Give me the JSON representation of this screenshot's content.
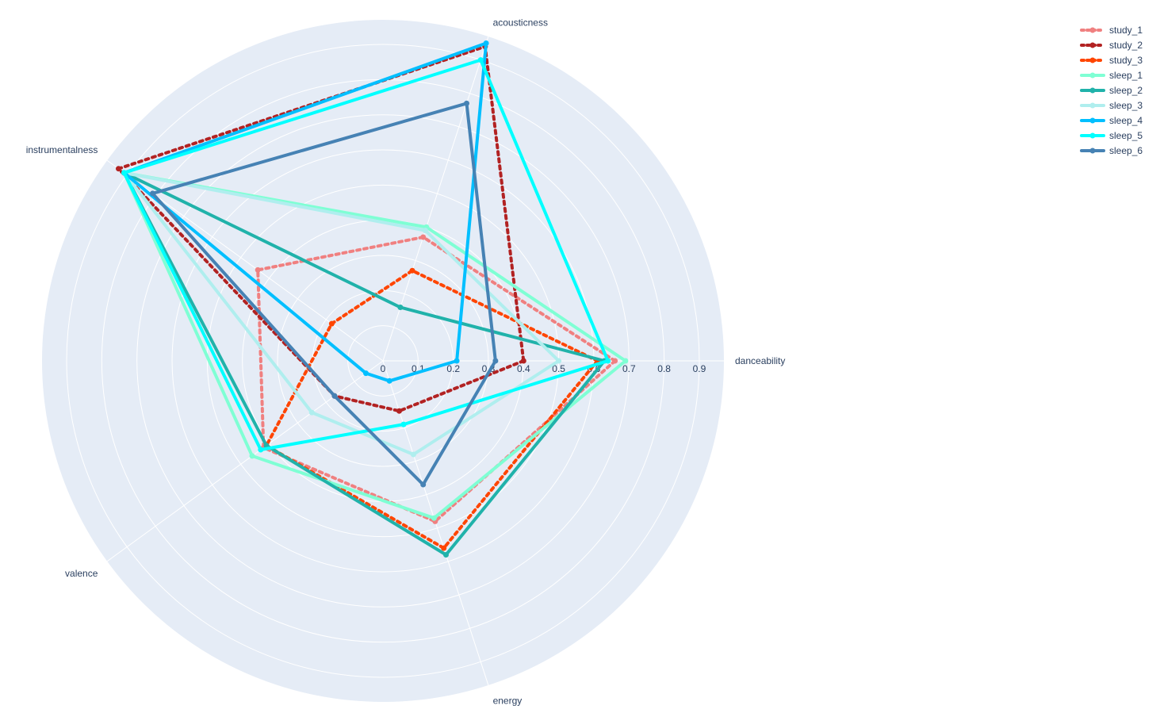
{
  "chart_data": {
    "type": "radar",
    "axes": [
      "danceability",
      "energy",
      "valence",
      "instrumentalness",
      "acousticness"
    ],
    "radial_range": [
      0,
      0.97
    ],
    "radial_ticks": [
      0,
      0.1,
      0.2,
      0.3,
      0.4,
      0.5,
      0.6,
      0.7,
      0.8,
      0.9
    ],
    "radial_tick_labels": [
      "0",
      "0.1",
      "0.2",
      "0.3",
      "0.4",
      "0.5",
      "0.6",
      "0.7",
      "0.8",
      "0.9"
    ],
    "grid": true,
    "legend_position": "top-right",
    "series": [
      {
        "name": "study_1",
        "color": "#f08080",
        "dash": "dot",
        "values": [
          0.66,
          0.48,
          0.42,
          0.44,
          0.37
        ]
      },
      {
        "name": "study_2",
        "color": "#b22222",
        "dash": "dot",
        "values": [
          0.4,
          0.15,
          0.17,
          0.93,
          0.94
        ]
      },
      {
        "name": "study_3",
        "color": "#ff4500",
        "dash": "dot",
        "values": [
          0.61,
          0.56,
          0.41,
          0.18,
          0.27
        ]
      },
      {
        "name": "sleep_1",
        "color": "#7fffd4",
        "dash": "solid",
        "values": [
          0.69,
          0.47,
          0.46,
          0.91,
          0.4
        ]
      },
      {
        "name": "sleep_2",
        "color": "#20b2aa",
        "dash": "solid",
        "values": [
          0.63,
          0.58,
          0.41,
          0.91,
          0.16
        ]
      },
      {
        "name": "sleep_3",
        "color": "#afeeee",
        "dash": "solid",
        "values": [
          0.5,
          0.28,
          0.25,
          0.91,
          0.39
        ]
      },
      {
        "name": "sleep_4",
        "color": "#00bfff",
        "dash": "solid",
        "values": [
          0.21,
          0.06,
          0.06,
          0.91,
          0.95
        ]
      },
      {
        "name": "sleep_5",
        "color": "#00ffff",
        "dash": "solid",
        "values": [
          0.64,
          0.19,
          0.43,
          0.91,
          0.9
        ]
      },
      {
        "name": "sleep_6",
        "color": "#4682b4",
        "dash": "solid",
        "values": [
          0.32,
          0.37,
          0.17,
          0.81,
          0.77
        ]
      }
    ]
  }
}
